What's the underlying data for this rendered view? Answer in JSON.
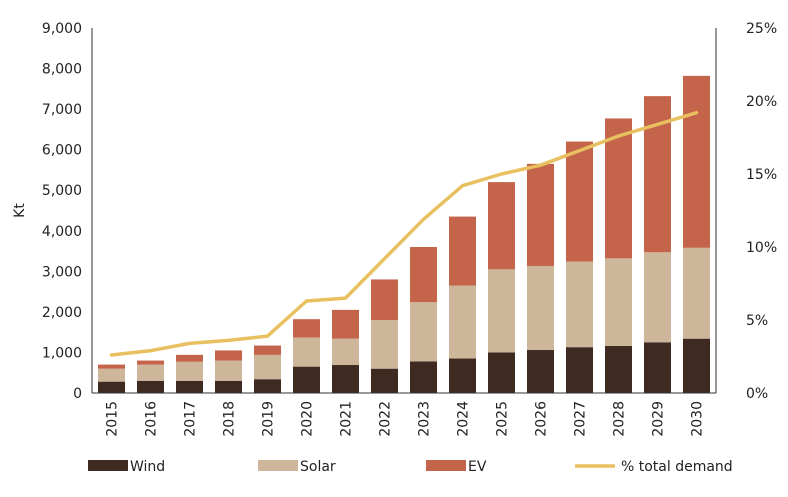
{
  "chart_data": {
    "type": "bar",
    "stacked": true,
    "categories": [
      "2015",
      "2016",
      "2017",
      "2018",
      "2019",
      "2020",
      "2021",
      "2022",
      "2023",
      "2024",
      "2025",
      "2026",
      "2027",
      "2028",
      "2029",
      "2030"
    ],
    "series": [
      {
        "name": "Wind",
        "color": "#3f2a22",
        "values": [
          280,
          300,
          300,
          300,
          340,
          650,
          690,
          600,
          780,
          850,
          1000,
          1060,
          1130,
          1160,
          1250,
          1340
        ]
      },
      {
        "name": "Solar",
        "color": "#cdb69a",
        "values": [
          320,
          400,
          470,
          500,
          600,
          720,
          650,
          1200,
          1460,
          1800,
          2050,
          2070,
          2110,
          2160,
          2220,
          2240
        ]
      },
      {
        "name": "EV",
        "color": "#c4644a",
        "values": [
          100,
          100,
          170,
          250,
          230,
          450,
          710,
          1000,
          1360,
          1700,
          2150,
          2520,
          2960,
          3450,
          3850,
          4240
        ]
      }
    ],
    "line_series": {
      "name": "% total demand",
      "color": "#e8c060",
      "axis": "right",
      "values": [
        2.6,
        2.9,
        3.4,
        3.6,
        3.9,
        6.3,
        6.5,
        9.2,
        11.9,
        14.2,
        15.0,
        15.6,
        16.6,
        17.6,
        18.4,
        19.2
      ]
    },
    "ylabel": "Kt",
    "ylim": [
      0,
      9000
    ],
    "yticks": [
      "9,000",
      "8,000",
      "7,000",
      "6,000",
      "5,000",
      "4,000",
      "3,000",
      "2,000",
      "1,000",
      "0"
    ],
    "y2lim": [
      0,
      25
    ],
    "y2ticks": [
      "25%",
      "20%",
      "15%",
      "10%",
      "5%",
      "0%"
    ],
    "legend_position": "bottom",
    "grid": false
  }
}
